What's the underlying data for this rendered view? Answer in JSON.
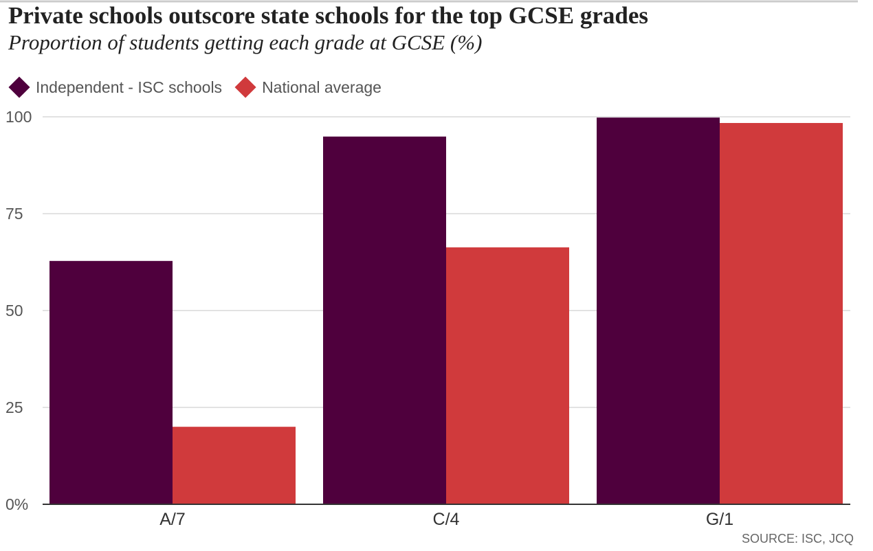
{
  "chart_data": {
    "type": "bar",
    "title": "Private schools outscore state schools for the top GCSE grades",
    "subtitle": "Proportion of students getting each grade at GCSE (%)",
    "source": "SOURCE: ISC, JCQ",
    "categories": [
      "A/7",
      "C/4",
      "G/1"
    ],
    "series": [
      {
        "name": "Independent - ISC schools",
        "color": "#4f003d",
        "values": [
          62.8,
          94.9,
          99.8
        ]
      },
      {
        "name": "National average",
        "color": "#d03a3c",
        "values": [
          20.0,
          66.3,
          98.4
        ]
      }
    ],
    "ylim": [
      0,
      100
    ],
    "yticks": [
      {
        "value": 0,
        "label": "0%"
      },
      25,
      50,
      75,
      100
    ],
    "grid": true,
    "legend": "top-left"
  }
}
